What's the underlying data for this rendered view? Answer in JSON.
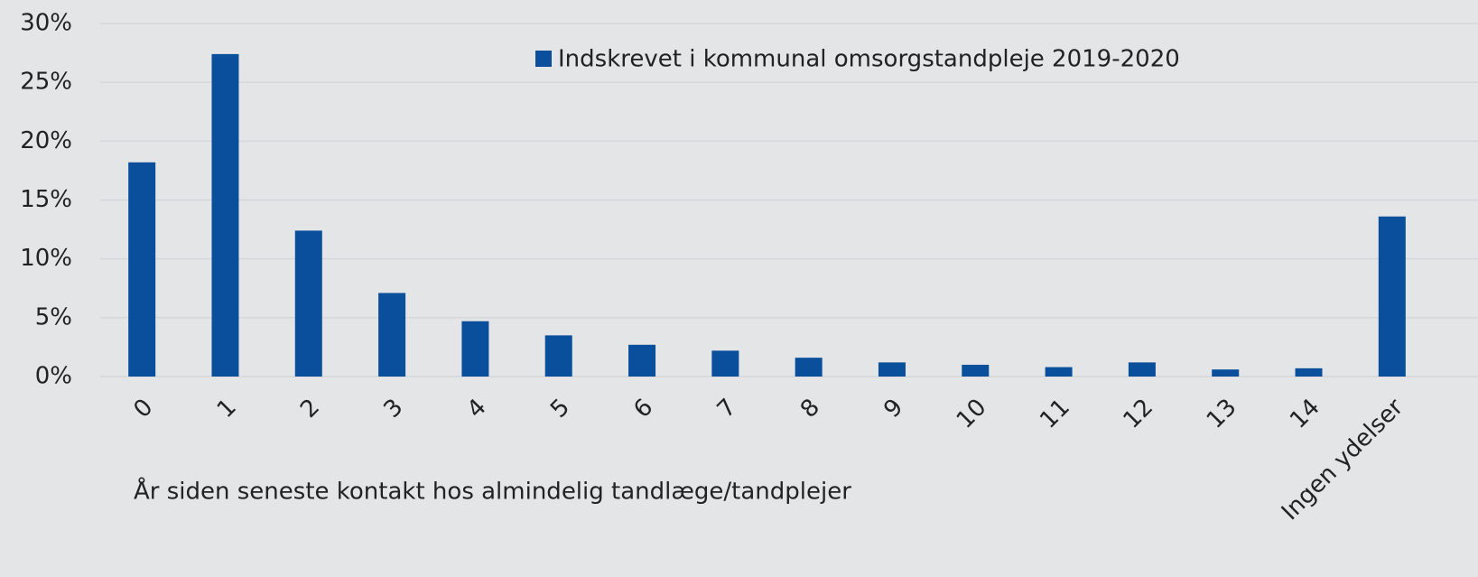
{
  "chart_data": {
    "type": "bar",
    "x_label": "År siden seneste kontakt hos almindelig tandlæge/tandplejer",
    "categories": [
      "0",
      "1",
      "2",
      "3",
      "4",
      "5",
      "6",
      "7",
      "8",
      "9",
      "10",
      "11",
      "12",
      "13",
      "14",
      "Ingen ydelser"
    ],
    "series": [
      {
        "name": "Indskrevet i kommunal omsorgstandpleje 2019-2020",
        "color": "#0a4f9c",
        "values": [
          18.2,
          27.4,
          12.4,
          7.1,
          4.7,
          3.5,
          2.7,
          2.2,
          1.6,
          1.2,
          1.0,
          0.8,
          1.2,
          0.6,
          0.7,
          13.6
        ]
      }
    ],
    "ylim": [
      0,
      30
    ],
    "yticks": [
      {
        "value": 0,
        "label": "0%"
      },
      {
        "value": 5,
        "label": "5%"
      },
      {
        "value": 10,
        "label": "10%"
      },
      {
        "value": 15,
        "label": "15%"
      },
      {
        "value": 20,
        "label": "20%"
      },
      {
        "value": 25,
        "label": "25%"
      },
      {
        "value": 30,
        "label": "30%"
      }
    ],
    "grid": true,
    "legend": "top"
  }
}
